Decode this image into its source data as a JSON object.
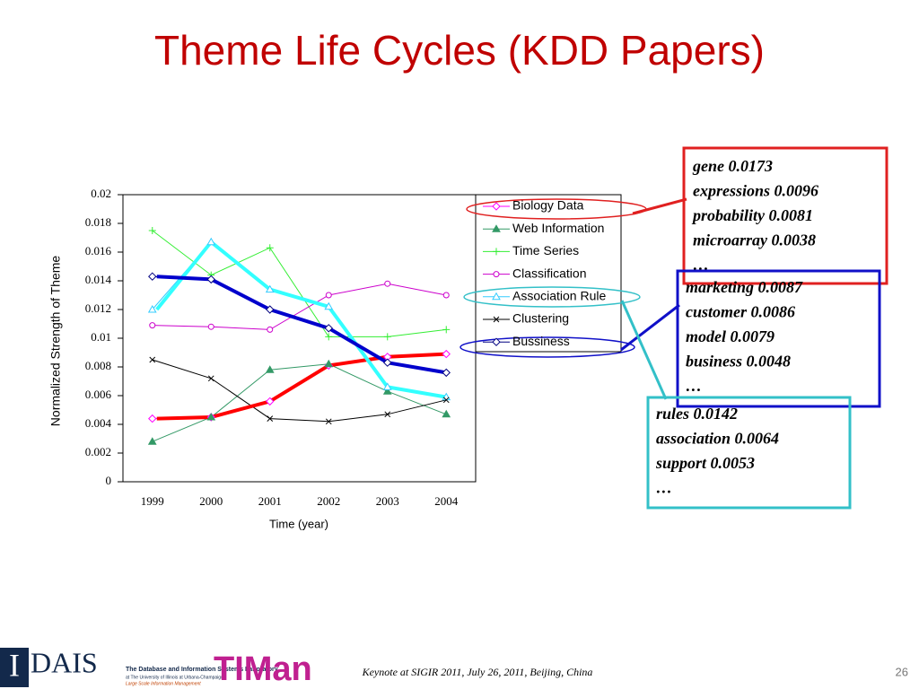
{
  "slide": {
    "title": "Theme Life Cycles (KDD Papers)",
    "footer": "Keynote at SIGIR 2011,  July 26, 2011, Beijing, China",
    "page": "26",
    "logo": {
      "mark": "I",
      "name": "DAIS",
      "lab": "The Database and Information Systems Laboratory",
      "school": "at The University of Illinois at Urbana-Champaign",
      "group": "Large Scale Information Management",
      "timan": "TIMan"
    }
  },
  "callouts": [
    {
      "color": "#e02020",
      "lines": [
        "gene  0.0173",
        "expressions  0.0096",
        "probability 0.0081",
        "microarray 0.0038",
        "…"
      ]
    },
    {
      "color": "#1010c8",
      "lines": [
        "marketing  0.0087",
        "customer  0.0086",
        "model 0.0079",
        "business 0.0048",
        "…"
      ]
    },
    {
      "color": "#33c0c8",
      "lines": [
        "rules  0.0142",
        "association  0.0064",
        "support 0.0053",
        "…"
      ]
    }
  ],
  "chart_data": {
    "type": "line",
    "x_label": "Time (year)",
    "y_label": "Normalized Strength of Theme",
    "categories": [
      "1999",
      "2000",
      "2001",
      "2002",
      "2003",
      "2004"
    ],
    "ylim": [
      0,
      0.02
    ],
    "yticks": [
      0,
      0.002,
      0.004,
      0.006,
      0.008,
      0.01,
      0.012,
      0.014,
      0.016,
      0.018,
      0.02
    ],
    "series": [
      {
        "name": "Biology Data",
        "color": "#ff00ff",
        "marker": "diamond",
        "highlight": "#ff0000",
        "values": [
          0.0044,
          0.0045,
          0.0056,
          0.0081,
          0.0087,
          0.0089
        ]
      },
      {
        "name": "Web Information",
        "color": "#339966",
        "marker": "triangle",
        "values": [
          0.0028,
          0.0045,
          0.0078,
          0.0082,
          0.0063,
          0.0047
        ]
      },
      {
        "name": "Time Series",
        "color": "#33ee33",
        "marker": "plus",
        "values": [
          0.0175,
          0.0144,
          0.0163,
          0.0101,
          0.0101,
          0.0106
        ]
      },
      {
        "name": "Classification",
        "color": "#cc00cc",
        "marker": "circle",
        "values": [
          0.0109,
          0.0108,
          0.0106,
          0.013,
          0.0138,
          0.013
        ]
      },
      {
        "name": "Association Rule",
        "color": "#33ccff",
        "marker": "triangle",
        "highlight": "#33ffff",
        "values": [
          0.012,
          0.0167,
          0.0134,
          0.0122,
          0.0066,
          0.0059
        ]
      },
      {
        "name": "Clustering",
        "color": "#000000",
        "marker": "cross",
        "values": [
          0.0085,
          0.0072,
          0.0044,
          0.0042,
          0.0047,
          0.0057
        ]
      },
      {
        "name": "Bussiness",
        "color": "#000080",
        "marker": "diamond",
        "highlight": "#0000cc",
        "values": [
          0.0143,
          0.0141,
          0.012,
          0.0107,
          0.0083,
          0.0076
        ]
      }
    ]
  }
}
